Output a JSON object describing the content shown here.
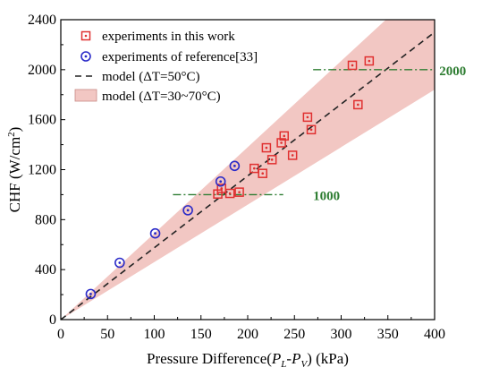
{
  "chart_data": {
    "type": "scatter",
    "title": "",
    "xlabel": "Pressure Difference(",
    "xlabel_math": {
      "P": "P",
      "sub_L": "L",
      "minus": "-",
      "sub_V": "V"
    },
    "xlabel_suffix": ") (kPa)",
    "ylabel": "CHF (W/cm",
    "ylabel_sup": "2",
    "ylabel_suffix": ")",
    "xlim": [
      0,
      400
    ],
    "ylim": [
      0,
      2400
    ],
    "x_ticks": [
      "0",
      "50",
      "100",
      "150",
      "200",
      "250",
      "300",
      "350",
      "400"
    ],
    "y_ticks": [
      "0",
      "400",
      "800",
      "1200",
      "1600",
      "2000",
      "2400"
    ],
    "grid": false,
    "legend_position": "top-left",
    "colors": {
      "experiments": "#e03030",
      "reference": "#2a2ac8",
      "model_line": "#222222",
      "band": "#f2c7c3",
      "annotation": "#2e7d32"
    },
    "legend": {
      "experiments": "experiments in this work",
      "reference": "experiments of reference[33]",
      "model_line": "model (ΔT=50°C)",
      "model_band": "model (ΔT=30~70°C)"
    },
    "series": [
      {
        "name": "experiments in this work",
        "marker": "square-dot",
        "points": [
          [
            168,
            1005
          ],
          [
            172,
            1050
          ],
          [
            181,
            1010
          ],
          [
            191,
            1020
          ],
          [
            207,
            1210
          ],
          [
            216,
            1170
          ],
          [
            220,
            1375
          ],
          [
            226,
            1280
          ],
          [
            236,
            1415
          ],
          [
            239,
            1470
          ],
          [
            248,
            1315
          ],
          [
            264,
            1620
          ],
          [
            268,
            1520
          ],
          [
            312,
            2035
          ],
          [
            318,
            1720
          ],
          [
            330,
            2070
          ]
        ]
      },
      {
        "name": "experiments of reference[33]",
        "marker": "circle-dot",
        "points": [
          [
            32,
            205
          ],
          [
            63,
            455
          ],
          [
            101,
            690
          ],
          [
            136,
            875
          ],
          [
            171,
            1105
          ],
          [
            186,
            1230
          ]
        ]
      }
    ],
    "model_line": {
      "slope": 5.75,
      "x_range": [
        0,
        400
      ]
    },
    "model_band": {
      "upper_slope": 6.9,
      "lower_slope": 4.6,
      "x_range": [
        0,
        400
      ]
    },
    "reference_lines": [
      {
        "y": 1000,
        "x_range": [
          120,
          238
        ],
        "label": "1000",
        "label_x": 270
      },
      {
        "y": 2000,
        "x_range": [
          270,
          400
        ],
        "label": "2000",
        "label_x": 405
      }
    ]
  }
}
